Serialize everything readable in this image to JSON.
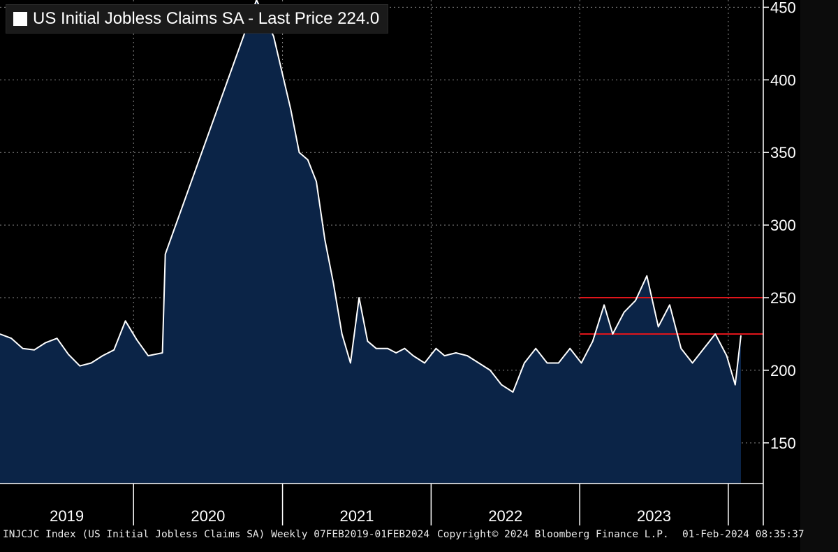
{
  "legend": {
    "label": "US Initial Jobless Claims SA - Last Price 224.0",
    "swatch_color": "#ffffff"
  },
  "footer": {
    "description": "INJCJC Index (US Initial Jobless Claims SA) Weekly 07FEB2019-01FEB2024",
    "copyright": "Copyright© 2024 Bloomberg Finance L.P.",
    "timestamp": "01-Feb-2024 08:35:37"
  },
  "colors": {
    "background": "#000000",
    "area_fill": "#0b2447",
    "line": "#ffffff",
    "reference_lines": "#e0151b",
    "grid": "#8a8a8a"
  },
  "chart_data": {
    "type": "area",
    "title": "US Initial Jobless Claims SA",
    "last_price": 224.0,
    "frequency": "Weekly",
    "x_range": [
      "2019-02-07",
      "2024-02-01"
    ],
    "x_tick_labels": [
      "2019",
      "2020",
      "2021",
      "2022",
      "2023"
    ],
    "y_ticks": [
      150,
      200,
      250,
      300,
      350,
      400,
      450
    ],
    "ylim": [
      122,
      455
    ],
    "grid": true,
    "legend_position": "top-left",
    "reference_lines": [
      250,
      225
    ],
    "series": [
      {
        "x": [
          "2019-02-07",
          "2019-03-07",
          "2019-04-04",
          "2019-05-02",
          "2019-05-30",
          "2019-06-27",
          "2019-07-25",
          "2019-08-22",
          "2019-09-19",
          "2019-10-17",
          "2019-11-14",
          "2019-12-12",
          "2020-01-09",
          "2020-02-06",
          "2020-03-12",
          "2020-03-19",
          "2020-10-29",
          "2020-12-10",
          "2021-01-21",
          "2021-02-11",
          "2021-03-04",
          "2021-03-25",
          "2021-04-15",
          "2021-05-06",
          "2021-05-27",
          "2021-06-17",
          "2021-07-08",
          "2021-07-29",
          "2021-08-19",
          "2021-09-16",
          "2021-10-07",
          "2021-10-28",
          "2021-11-18",
          "2021-12-16",
          "2022-01-13",
          "2022-02-03",
          "2022-03-03",
          "2022-03-31",
          "2022-04-28",
          "2022-05-26",
          "2022-06-23",
          "2022-07-21",
          "2022-08-18",
          "2022-09-15",
          "2022-10-13",
          "2022-11-10",
          "2022-12-08",
          "2023-01-05",
          "2023-02-02",
          "2023-03-02",
          "2023-03-23",
          "2023-04-20",
          "2023-05-18",
          "2023-06-15",
          "2023-07-13",
          "2023-08-10",
          "2023-09-07",
          "2023-10-05",
          "2023-11-02",
          "2023-11-30",
          "2023-12-28",
          "2024-01-18",
          "2024-02-01"
        ],
        "y": [
          225,
          222,
          215,
          214,
          219,
          222,
          211,
          203,
          205,
          210,
          214,
          234,
          221,
          210,
          212,
          280,
          455,
          430,
          380,
          350,
          345,
          330,
          290,
          260,
          225,
          205,
          250,
          220,
          215,
          215,
          212,
          215,
          210,
          205,
          215,
          210,
          212,
          210,
          205,
          200,
          190,
          185,
          205,
          215,
          205,
          205,
          215,
          205,
          220,
          245,
          225,
          240,
          248,
          265,
          230,
          245,
          215,
          205,
          215,
          225,
          210,
          190,
          224
        ]
      }
    ]
  }
}
